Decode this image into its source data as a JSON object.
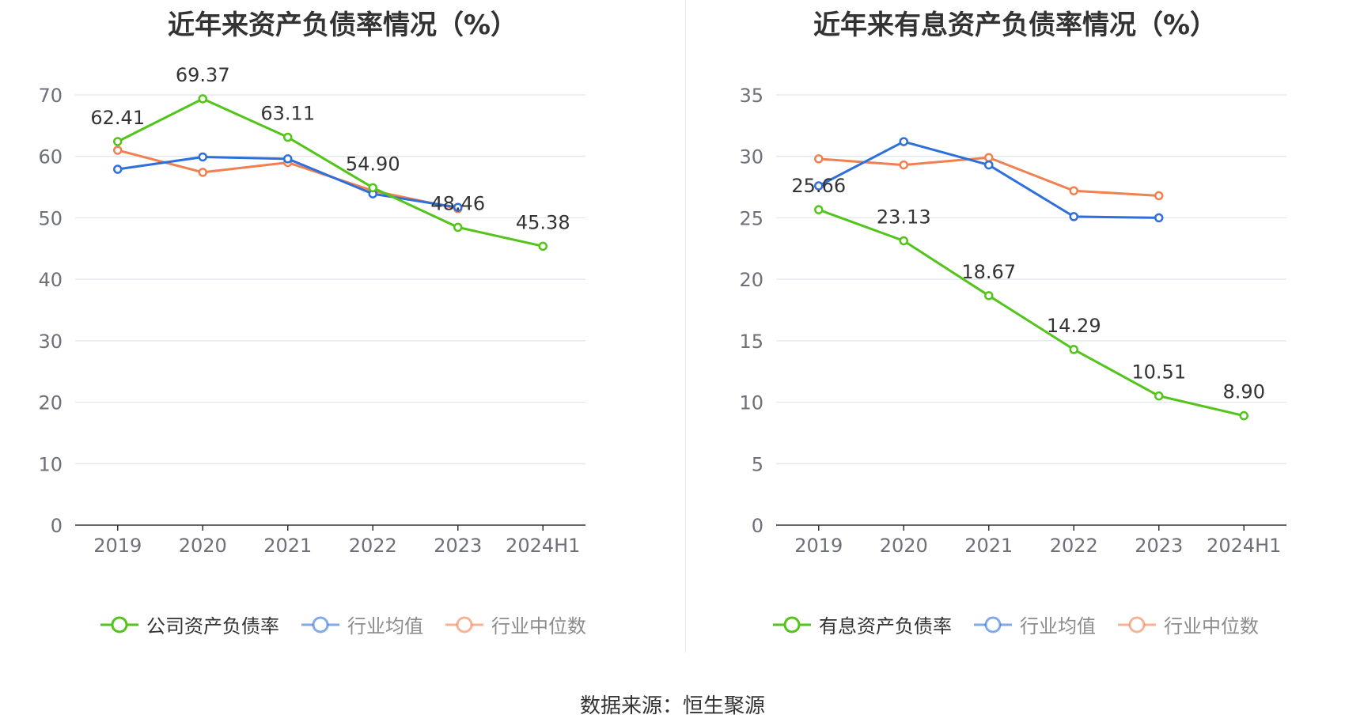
{
  "chart_data": [
    {
      "type": "line",
      "title": "近年来资产负债率情况（%）",
      "categories": [
        "2019",
        "2020",
        "2021",
        "2022",
        "2023",
        "2024H1"
      ],
      "ylim": [
        0,
        70
      ],
      "yticks": [
        0,
        10,
        20,
        30,
        40,
        50,
        60,
        70
      ],
      "grid": true,
      "legend_position": "bottom",
      "series": [
        {
          "name": "公司资产负债率",
          "color": "#52c41a",
          "values": [
            62.41,
            69.37,
            63.11,
            54.9,
            48.46,
            45.38
          ],
          "labels": [
            "62.41",
            "69.37",
            "63.11",
            "54.90",
            "48.46",
            "45.38"
          ]
        },
        {
          "name": "行业均值",
          "color": "#2f6fdc",
          "values": [
            57.9,
            59.9,
            59.6,
            53.9,
            51.7,
            null
          ]
        },
        {
          "name": "行业中位数",
          "color": "#f08050",
          "values": [
            61.0,
            57.4,
            59.0,
            54.4,
            51.5,
            null
          ]
        }
      ]
    },
    {
      "type": "line",
      "title": "近年来有息资产负债率情况（%）",
      "categories": [
        "2019",
        "2020",
        "2021",
        "2022",
        "2023",
        "2024H1"
      ],
      "ylim": [
        0,
        35
      ],
      "yticks": [
        0,
        5,
        10,
        15,
        20,
        25,
        30,
        35
      ],
      "grid": true,
      "legend_position": "bottom",
      "series": [
        {
          "name": "有息资产负债率",
          "color": "#52c41a",
          "values": [
            25.66,
            23.13,
            18.67,
            14.29,
            10.51,
            8.9
          ],
          "labels": [
            "25.66",
            "23.13",
            "18.67",
            "14.29",
            "10.51",
            "8.90"
          ]
        },
        {
          "name": "行业均值",
          "color": "#2f6fdc",
          "values": [
            27.6,
            31.2,
            29.3,
            25.1,
            25.0,
            null
          ]
        },
        {
          "name": "行业中位数",
          "color": "#f08050",
          "values": [
            29.8,
            29.3,
            29.9,
            27.2,
            26.8,
            null
          ]
        }
      ]
    }
  ],
  "source_text": "数据来源：恒生聚源"
}
